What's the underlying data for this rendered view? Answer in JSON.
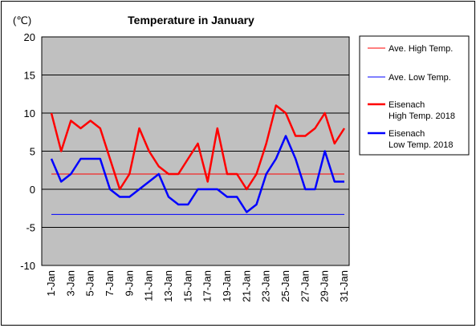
{
  "chart_data": {
    "type": "line",
    "title": "Temperature in January",
    "yunit": "(℃)",
    "ylim": [
      -10,
      20
    ],
    "yticks": [
      20,
      15,
      10,
      5,
      0,
      -5,
      -10
    ],
    "grid": true,
    "legend_position": "right",
    "x": [
      "1-Jan",
      "2-Jan",
      "3-Jan",
      "4-Jan",
      "5-Jan",
      "6-Jan",
      "7-Jan",
      "8-Jan",
      "9-Jan",
      "10-Jan",
      "11-Jan",
      "12-Jan",
      "13-Jan",
      "14-Jan",
      "15-Jan",
      "16-Jan",
      "17-Jan",
      "18-Jan",
      "19-Jan",
      "20-Jan",
      "21-Jan",
      "22-Jan",
      "23-Jan",
      "24-Jan",
      "25-Jan",
      "26-Jan",
      "27-Jan",
      "28-Jan",
      "29-Jan",
      "30-Jan",
      "31-Jan"
    ],
    "xtick_labels": [
      "1-Jan",
      "3-Jan",
      "5-Jan",
      "7-Jan",
      "9-Jan",
      "11-Jan",
      "13-Jan",
      "15-Jan",
      "17-Jan",
      "19-Jan",
      "21-Jan",
      "23-Jan",
      "25-Jan",
      "27-Jan",
      "29-Jan",
      "31-Jan"
    ],
    "series": [
      {
        "name": "Ave. High Temp.",
        "color": "#ff0000",
        "width": 1,
        "values": [
          2,
          2,
          2,
          2,
          2,
          2,
          2,
          2,
          2,
          2,
          2,
          2,
          2,
          2,
          2,
          2,
          2,
          2,
          2,
          2,
          2,
          2,
          2,
          2,
          2,
          2,
          2,
          2,
          2,
          2,
          2
        ]
      },
      {
        "name": "Ave. Low Temp.",
        "color": "#0000ff",
        "width": 1,
        "values": [
          -3.3,
          -3.3,
          -3.3,
          -3.3,
          -3.3,
          -3.3,
          -3.3,
          -3.3,
          -3.3,
          -3.3,
          -3.3,
          -3.3,
          -3.3,
          -3.3,
          -3.3,
          -3.3,
          -3.3,
          -3.3,
          -3.3,
          -3.3,
          -3.3,
          -3.3,
          -3.3,
          -3.3,
          -3.3,
          -3.3,
          -3.3,
          -3.3,
          -3.3,
          -3.3,
          -3.3
        ]
      },
      {
        "name": "Eisenach High Temp. 2018",
        "legend_lines": [
          "Eisenach",
          "High Temp. 2018"
        ],
        "color": "#ff0000",
        "width": 2.5,
        "values": [
          10,
          5,
          9,
          8,
          9,
          8,
          4,
          0,
          2,
          8,
          5,
          3,
          2,
          2,
          4,
          6,
          1,
          8,
          2,
          2,
          0,
          2,
          6,
          11,
          10,
          7,
          7,
          8,
          10,
          6,
          8
        ]
      },
      {
        "name": "Eisenach Low Temp. 2018",
        "legend_lines": [
          "Eisenach",
          "Low Temp. 2018"
        ],
        "color": "#0000ff",
        "width": 2.5,
        "values": [
          4,
          1,
          2,
          4,
          4,
          4,
          0,
          -1,
          -1,
          0,
          1,
          2,
          -1,
          -2,
          -2,
          0,
          0,
          0,
          -1,
          -1,
          -3,
          -2,
          2,
          4,
          7,
          4,
          0,
          0,
          5,
          1,
          1
        ]
      }
    ],
    "plot_background": "#c0c0c0"
  }
}
